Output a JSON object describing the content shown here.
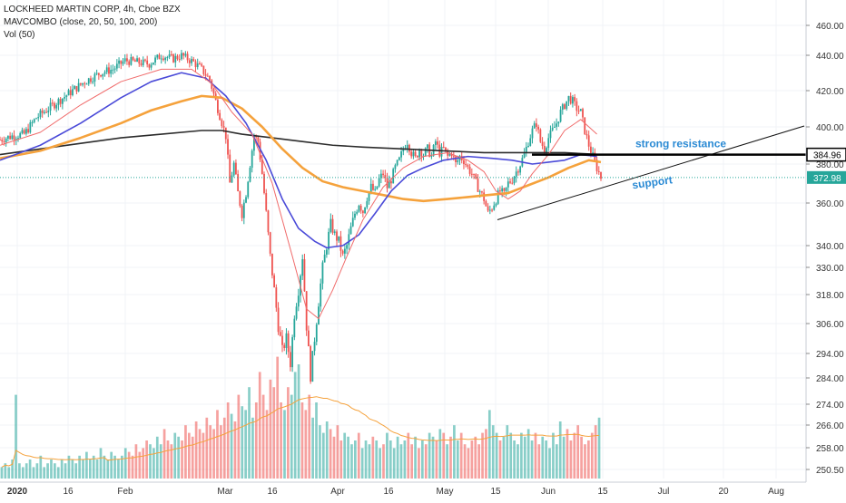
{
  "header": {
    "title": "LOCKHEED MARTIN CORP, 4h, Cboe BZX",
    "indicator": "MAVCOMBO (close, 20, 50, 100, 200)",
    "volume": "Vol (50)"
  },
  "colors": {
    "up": "#26a69a",
    "down": "#ef5350",
    "ma20": "#f06b6b",
    "ma50": "#4a4ad8",
    "ma100": "#f5a23c",
    "ma200": "#2c2c2c",
    "annotation": "#2a8ad4",
    "price_tag": "#26a69a"
  },
  "chart_data": {
    "type": "candlestick",
    "x_ticks": [
      "2020",
      "16",
      "Feb",
      "Mar",
      "16",
      "Apr",
      "16",
      "May",
      "15",
      "Jun",
      "15",
      "Jul",
      "20",
      "Aug"
    ],
    "y_ticks": [
      "460.00",
      "440.00",
      "420.00",
      "400.00",
      "380.00",
      "360.00",
      "340.00",
      "330.00",
      "318.00",
      "306.00",
      "294.00",
      "284.00",
      "274.00",
      "266.00",
      "258.00",
      "250.50"
    ],
    "y_tick_values": [
      460,
      440,
      420,
      400,
      380,
      360,
      340,
      330,
      318,
      306,
      294,
      284,
      274,
      266,
      258,
      250.5
    ],
    "price_labels": [
      {
        "text": "384.96",
        "value": 384.96,
        "style": "dark"
      },
      {
        "text": "372.98",
        "value": 372.98,
        "style": "green"
      }
    ],
    "annotations": {
      "resistance": "strong resistance",
      "support": "support"
    },
    "resistance_level": 384.96,
    "last_close": 372.98,
    "support_line": {
      "start": [
        "15 May",
        352
      ],
      "end": [
        "Jul 20",
        400
      ]
    },
    "price_path": [
      [
        0,
        393
      ],
      [
        6,
        395
      ],
      [
        12,
        396
      ],
      [
        18,
        405
      ],
      [
        24,
        410
      ],
      [
        30,
        415
      ],
      [
        36,
        420
      ],
      [
        42,
        425
      ],
      [
        50,
        430
      ],
      [
        56,
        432
      ],
      [
        62,
        437
      ],
      [
        68,
        436
      ],
      [
        74,
        435
      ],
      [
        80,
        440
      ],
      [
        86,
        438
      ],
      [
        90,
        440
      ],
      [
        96,
        436
      ],
      [
        100,
        432
      ],
      [
        104,
        426
      ],
      [
        108,
        410
      ],
      [
        112,
        395
      ],
      [
        114,
        370
      ],
      [
        116,
        380
      ],
      [
        118,
        365
      ],
      [
        120,
        355
      ],
      [
        122,
        365
      ],
      [
        124,
        380
      ],
      [
        126,
        395
      ],
      [
        128,
        392
      ],
      [
        130,
        375
      ],
      [
        132,
        355
      ],
      [
        134,
        335
      ],
      [
        136,
        320
      ],
      [
        138,
        305
      ],
      [
        140,
        295
      ],
      [
        142,
        300
      ],
      [
        144,
        290
      ],
      [
        146,
        310
      ],
      [
        148,
        320
      ],
      [
        150,
        335
      ],
      [
        152,
        305
      ],
      [
        154,
        285
      ],
      [
        156,
        300
      ],
      [
        158,
        315
      ],
      [
        160,
        330
      ],
      [
        162,
        340
      ],
      [
        164,
        350
      ],
      [
        166,
        345
      ],
      [
        168,
        342
      ],
      [
        170,
        335
      ],
      [
        172,
        340
      ],
      [
        174,
        348
      ],
      [
        176,
        355
      ],
      [
        178,
        360
      ],
      [
        180,
        356
      ],
      [
        182,
        363
      ],
      [
        184,
        368
      ],
      [
        186,
        365
      ],
      [
        188,
        372
      ],
      [
        190,
        375
      ],
      [
        192,
        368
      ],
      [
        194,
        372
      ],
      [
        196,
        378
      ],
      [
        198,
        382
      ],
      [
        200,
        388
      ],
      [
        202,
        392
      ],
      [
        204,
        386
      ],
      [
        206,
        383
      ],
      [
        208,
        388
      ],
      [
        210,
        385
      ],
      [
        212,
        388
      ],
      [
        214,
        384
      ],
      [
        216,
        392
      ],
      [
        218,
        386
      ],
      [
        220,
        388
      ],
      [
        222,
        384
      ],
      [
        224,
        386
      ],
      [
        226,
        380
      ],
      [
        228,
        384
      ],
      [
        230,
        382
      ],
      [
        232,
        378
      ],
      [
        234,
        375
      ],
      [
        236,
        370
      ],
      [
        238,
        366
      ],
      [
        240,
        362
      ],
      [
        242,
        355
      ],
      [
        244,
        358
      ],
      [
        246,
        362
      ],
      [
        248,
        366
      ],
      [
        250,
        364
      ],
      [
        252,
        370
      ],
      [
        254,
        372
      ],
      [
        256,
        376
      ],
      [
        258,
        380
      ],
      [
        260,
        385
      ],
      [
        262,
        392
      ],
      [
        264,
        398
      ],
      [
        266,
        402
      ],
      [
        268,
        392
      ],
      [
        270,
        388
      ],
      [
        272,
        394
      ],
      [
        274,
        398
      ],
      [
        276,
        402
      ],
      [
        278,
        408
      ],
      [
        280,
        412
      ],
      [
        282,
        416
      ],
      [
        284,
        414
      ],
      [
        286,
        410
      ],
      [
        288,
        408
      ],
      [
        290,
        398
      ],
      [
        292,
        390
      ],
      [
        294,
        384
      ],
      [
        296,
        378
      ],
      [
        298,
        373
      ]
    ],
    "ma20": [
      [
        0,
        390
      ],
      [
        20,
        397
      ],
      [
        40,
        412
      ],
      [
        60,
        425
      ],
      [
        80,
        432
      ],
      [
        95,
        432
      ],
      [
        105,
        424
      ],
      [
        115,
        408
      ],
      [
        125,
        396
      ],
      [
        135,
        370
      ],
      [
        145,
        335
      ],
      [
        152,
        312
      ],
      [
        158,
        308
      ],
      [
        165,
        320
      ],
      [
        172,
        335
      ],
      [
        180,
        352
      ],
      [
        190,
        368
      ],
      [
        200,
        378
      ],
      [
        210,
        384
      ],
      [
        222,
        386
      ],
      [
        232,
        382
      ],
      [
        240,
        376
      ],
      [
        246,
        366
      ],
      [
        252,
        362
      ],
      [
        258,
        366
      ],
      [
        264,
        375
      ],
      [
        272,
        385
      ],
      [
        280,
        398
      ],
      [
        288,
        404
      ],
      [
        296,
        396
      ]
    ],
    "ma50": [
      [
        0,
        382
      ],
      [
        20,
        390
      ],
      [
        40,
        402
      ],
      [
        60,
        416
      ],
      [
        75,
        425
      ],
      [
        90,
        430
      ],
      [
        102,
        427
      ],
      [
        112,
        417
      ],
      [
        122,
        402
      ],
      [
        132,
        382
      ],
      [
        140,
        362
      ],
      [
        148,
        348
      ],
      [
        156,
        342
      ],
      [
        162,
        339
      ],
      [
        170,
        340
      ],
      [
        178,
        345
      ],
      [
        186,
        355
      ],
      [
        194,
        366
      ],
      [
        202,
        374
      ],
      [
        210,
        378
      ],
      [
        220,
        382
      ],
      [
        232,
        384
      ],
      [
        244,
        383
      ],
      [
        254,
        382
      ],
      [
        264,
        380
      ],
      [
        272,
        381
      ],
      [
        280,
        382
      ],
      [
        288,
        385
      ],
      [
        296,
        384
      ]
    ],
    "ma100": [
      [
        0,
        383
      ],
      [
        20,
        387
      ],
      [
        40,
        394
      ],
      [
        60,
        402
      ],
      [
        75,
        409
      ],
      [
        90,
        414
      ],
      [
        100,
        417
      ],
      [
        110,
        416
      ],
      [
        120,
        410
      ],
      [
        130,
        400
      ],
      [
        140,
        388
      ],
      [
        150,
        378
      ],
      [
        160,
        371
      ],
      [
        170,
        368
      ],
      [
        180,
        366
      ],
      [
        190,
        364
      ],
      [
        200,
        362
      ],
      [
        210,
        361
      ],
      [
        222,
        362
      ],
      [
        232,
        363
      ],
      [
        242,
        364
      ],
      [
        252,
        365
      ],
      [
        262,
        369
      ],
      [
        272,
        373
      ],
      [
        282,
        378
      ],
      [
        292,
        382
      ],
      [
        298,
        381
      ]
    ],
    "ma200": [
      [
        0,
        385
      ],
      [
        20,
        388
      ],
      [
        40,
        391
      ],
      [
        60,
        394
      ],
      [
        80,
        396
      ],
      [
        100,
        398
      ],
      [
        110,
        398
      ],
      [
        120,
        396
      ],
      [
        135,
        394
      ],
      [
        150,
        392
      ],
      [
        165,
        390
      ],
      [
        180,
        389
      ],
      [
        200,
        388
      ],
      [
        220,
        387
      ],
      [
        240,
        386
      ],
      [
        260,
        386
      ],
      [
        280,
        386
      ],
      [
        298,
        385
      ]
    ],
    "volume": [
      3,
      4,
      3,
      5,
      22,
      4,
      3,
      4,
      5,
      3,
      4,
      6,
      3,
      4,
      5,
      4,
      3,
      5,
      4,
      6,
      5,
      4,
      6,
      5,
      7,
      5,
      6,
      5,
      8,
      6,
      5,
      7,
      6,
      5,
      6,
      8,
      7,
      6,
      9,
      7,
      8,
      10,
      9,
      8,
      11,
      9,
      13,
      10,
      9,
      12,
      11,
      10,
      14,
      12,
      11,
      15,
      13,
      12,
      16,
      14,
      13,
      18,
      14,
      16,
      20,
      17,
      15,
      22,
      19,
      18,
      24,
      16,
      20,
      28,
      22,
      18,
      26,
      24,
      32,
      20,
      18,
      24,
      22,
      28,
      30,
      20,
      18,
      22,
      16,
      20,
      14,
      12,
      15,
      13,
      11,
      14,
      10,
      12,
      11,
      9,
      10,
      12,
      8,
      10,
      9,
      11,
      10,
      8,
      9,
      12,
      10,
      8,
      11,
      9,
      10,
      12,
      9,
      11,
      8,
      10,
      9,
      12,
      11,
      10,
      13,
      12,
      9,
      11,
      14,
      10,
      12,
      9,
      8,
      10,
      11,
      9,
      12,
      13,
      18,
      14,
      12,
      10,
      11,
      14,
      12,
      10,
      9,
      12,
      11,
      13,
      10,
      12,
      9,
      11,
      10,
      8,
      12,
      9,
      15,
      11,
      13,
      10,
      12,
      14,
      11,
      9,
      10,
      12,
      14,
      16
    ]
  }
}
